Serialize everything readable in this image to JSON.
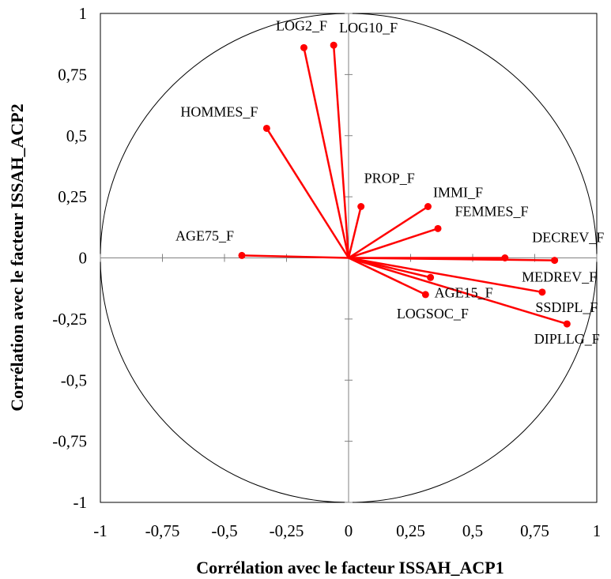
{
  "chart_data": {
    "type": "scatter",
    "subtype": "correlation-circle",
    "title": "",
    "xlabel": "Corrélation avec le facteur ISSAH_ACP1",
    "ylabel": "Corrélation avec le facteur ISSAH_ACP2",
    "xlim": [
      -1,
      1
    ],
    "ylim": [
      -1,
      1
    ],
    "x_ticks": [
      "-1",
      "-0,75",
      "-0,5",
      "-0,25",
      "0",
      "0,25",
      "0,5",
      "0,75",
      "1"
    ],
    "y_ticks": [
      "1",
      "0,75",
      "0,5",
      "0,25",
      "0",
      "-0,25",
      "-0,5",
      "-0,75",
      "-1"
    ],
    "grid": false,
    "legend": "none",
    "unit_circle": true,
    "color": "#ff0000",
    "points": [
      {
        "label": "LOG2_F",
        "x": -0.18,
        "y": 0.86
      },
      {
        "label": "LOG10_F",
        "x": -0.06,
        "y": 0.87
      },
      {
        "label": "HOMMES_F",
        "x": -0.33,
        "y": 0.53
      },
      {
        "label": "PROP_F",
        "x": 0.05,
        "y": 0.21
      },
      {
        "label": "IMMI_F",
        "x": 0.32,
        "y": 0.21
      },
      {
        "label": "FEMMES_F",
        "x": 0.36,
        "y": 0.12
      },
      {
        "label": "AGE75_F",
        "x": -0.43,
        "y": 0.01
      },
      {
        "label": "DECREV_F",
        "x": 0.63,
        "y": 0.0
      },
      {
        "label": "MEDREV_F",
        "x": 0.83,
        "y": -0.01
      },
      {
        "label": "AGE15_F",
        "x": 0.33,
        "y": -0.08
      },
      {
        "label": "SSDIPL_F",
        "x": 0.78,
        "y": -0.14
      },
      {
        "label": "LOGSOC_F",
        "x": 0.31,
        "y": -0.15
      },
      {
        "label": "DIPLLG_F",
        "x": 0.88,
        "y": -0.27
      }
    ]
  }
}
